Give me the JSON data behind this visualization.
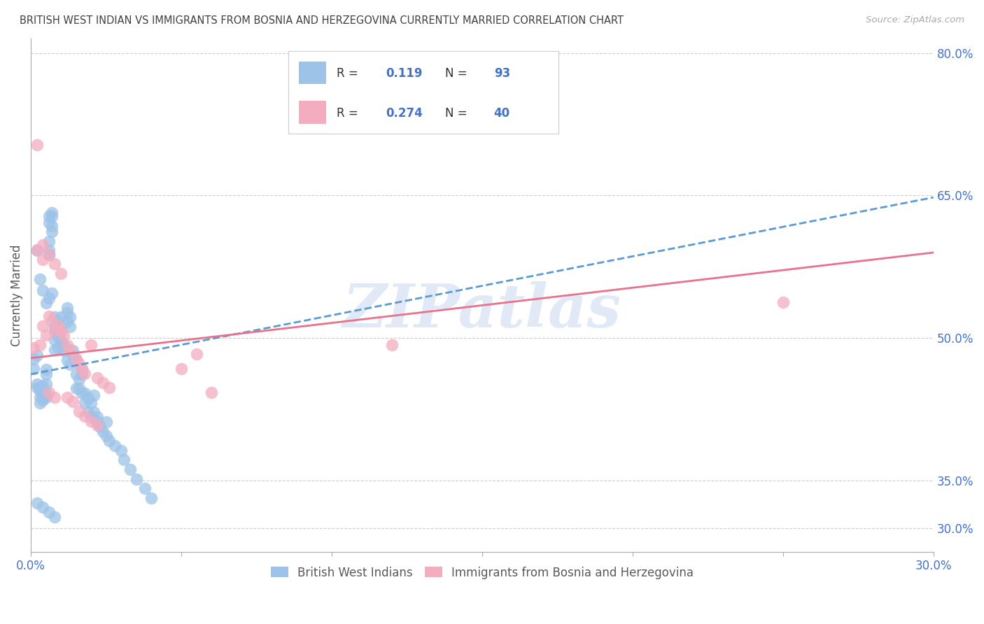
{
  "title": "BRITISH WEST INDIAN VS IMMIGRANTS FROM BOSNIA AND HERZEGOVINA CURRENTLY MARRIED CORRELATION CHART",
  "source": "Source: ZipAtlas.com",
  "ylabel": "Currently Married",
  "watermark": "ZIPatlas",
  "xlim": [
    0.0,
    0.3
  ],
  "ylim": [
    0.275,
    0.815
  ],
  "yticks_right": [
    0.3,
    0.35,
    0.5,
    0.65,
    0.8
  ],
  "yticklabels_right": [
    "30.0%",
    "35.0%",
    "50.0%",
    "65.0%",
    "80.0%"
  ],
  "grid_color": "#cccccc",
  "background_color": "#ffffff",
  "blue_color": "#9DC3E8",
  "pink_color": "#F4ACBF",
  "blue_line_color": "#5B9BD5",
  "pink_line_color": "#E8728A",
  "right_tick_color": "#4472C4",
  "axis_label_color": "#595959",
  "title_color": "#404040",
  "legend_text_color": "#333333",
  "legend_val_color": "#4472C4",
  "blue_scatter_x": [
    0.001,
    0.001,
    0.002,
    0.002,
    0.002,
    0.003,
    0.003,
    0.003,
    0.003,
    0.004,
    0.004,
    0.004,
    0.004,
    0.004,
    0.005,
    0.005,
    0.005,
    0.005,
    0.005,
    0.006,
    0.006,
    0.006,
    0.006,
    0.006,
    0.007,
    0.007,
    0.007,
    0.007,
    0.008,
    0.008,
    0.008,
    0.008,
    0.009,
    0.009,
    0.009,
    0.01,
    0.01,
    0.01,
    0.01,
    0.011,
    0.011,
    0.012,
    0.012,
    0.012,
    0.013,
    0.013,
    0.014,
    0.014,
    0.015,
    0.015,
    0.016,
    0.016,
    0.017,
    0.017,
    0.018,
    0.018,
    0.019,
    0.02,
    0.02,
    0.021,
    0.022,
    0.022,
    0.023,
    0.024,
    0.025,
    0.025,
    0.026,
    0.028,
    0.03,
    0.031,
    0.033,
    0.035,
    0.038,
    0.04,
    0.002,
    0.003,
    0.004,
    0.005,
    0.006,
    0.007,
    0.008,
    0.009,
    0.01,
    0.011,
    0.012,
    0.013,
    0.015,
    0.017,
    0.019,
    0.021,
    0.002,
    0.004,
    0.006,
    0.008
  ],
  "blue_scatter_y": [
    0.478,
    0.468,
    0.482,
    0.452,
    0.448,
    0.445,
    0.432,
    0.448,
    0.438,
    0.445,
    0.45,
    0.438,
    0.44,
    0.435,
    0.462,
    0.467,
    0.452,
    0.442,
    0.438,
    0.622,
    0.628,
    0.602,
    0.592,
    0.588,
    0.632,
    0.628,
    0.618,
    0.612,
    0.498,
    0.508,
    0.512,
    0.488,
    0.518,
    0.503,
    0.49,
    0.512,
    0.522,
    0.507,
    0.497,
    0.492,
    0.487,
    0.532,
    0.527,
    0.517,
    0.522,
    0.512,
    0.487,
    0.482,
    0.477,
    0.462,
    0.457,
    0.447,
    0.462,
    0.467,
    0.442,
    0.432,
    0.422,
    0.432,
    0.417,
    0.422,
    0.417,
    0.412,
    0.407,
    0.402,
    0.412,
    0.397,
    0.392,
    0.387,
    0.382,
    0.372,
    0.362,
    0.352,
    0.342,
    0.332,
    0.592,
    0.562,
    0.55,
    0.537,
    0.542,
    0.547,
    0.522,
    0.502,
    0.497,
    0.492,
    0.477,
    0.472,
    0.447,
    0.442,
    0.437,
    0.44,
    0.327,
    0.322,
    0.317,
    0.312
  ],
  "pink_scatter_x": [
    0.001,
    0.002,
    0.003,
    0.004,
    0.005,
    0.006,
    0.007,
    0.008,
    0.009,
    0.01,
    0.011,
    0.012,
    0.013,
    0.015,
    0.016,
    0.017,
    0.018,
    0.02,
    0.022,
    0.024,
    0.026,
    0.05,
    0.055,
    0.06,
    0.12,
    0.25,
    0.004,
    0.006,
    0.008,
    0.01,
    0.012,
    0.014,
    0.016,
    0.018,
    0.02,
    0.022,
    0.002,
    0.004,
    0.006,
    0.008
  ],
  "pink_scatter_y": [
    0.49,
    0.703,
    0.493,
    0.513,
    0.503,
    0.523,
    0.518,
    0.508,
    0.513,
    0.508,
    0.503,
    0.493,
    0.488,
    0.478,
    0.473,
    0.468,
    0.463,
    0.493,
    0.458,
    0.453,
    0.448,
    0.468,
    0.483,
    0.443,
    0.493,
    0.538,
    0.598,
    0.588,
    0.578,
    0.568,
    0.438,
    0.433,
    0.423,
    0.418,
    0.413,
    0.408,
    0.593,
    0.583,
    0.443,
    0.438
  ],
  "blue_trend_x": [
    0.0,
    0.3
  ],
  "blue_trend_y": [
    0.462,
    0.648
  ],
  "pink_trend_x": [
    0.0,
    0.3
  ],
  "pink_trend_y": [
    0.479,
    0.59
  ]
}
